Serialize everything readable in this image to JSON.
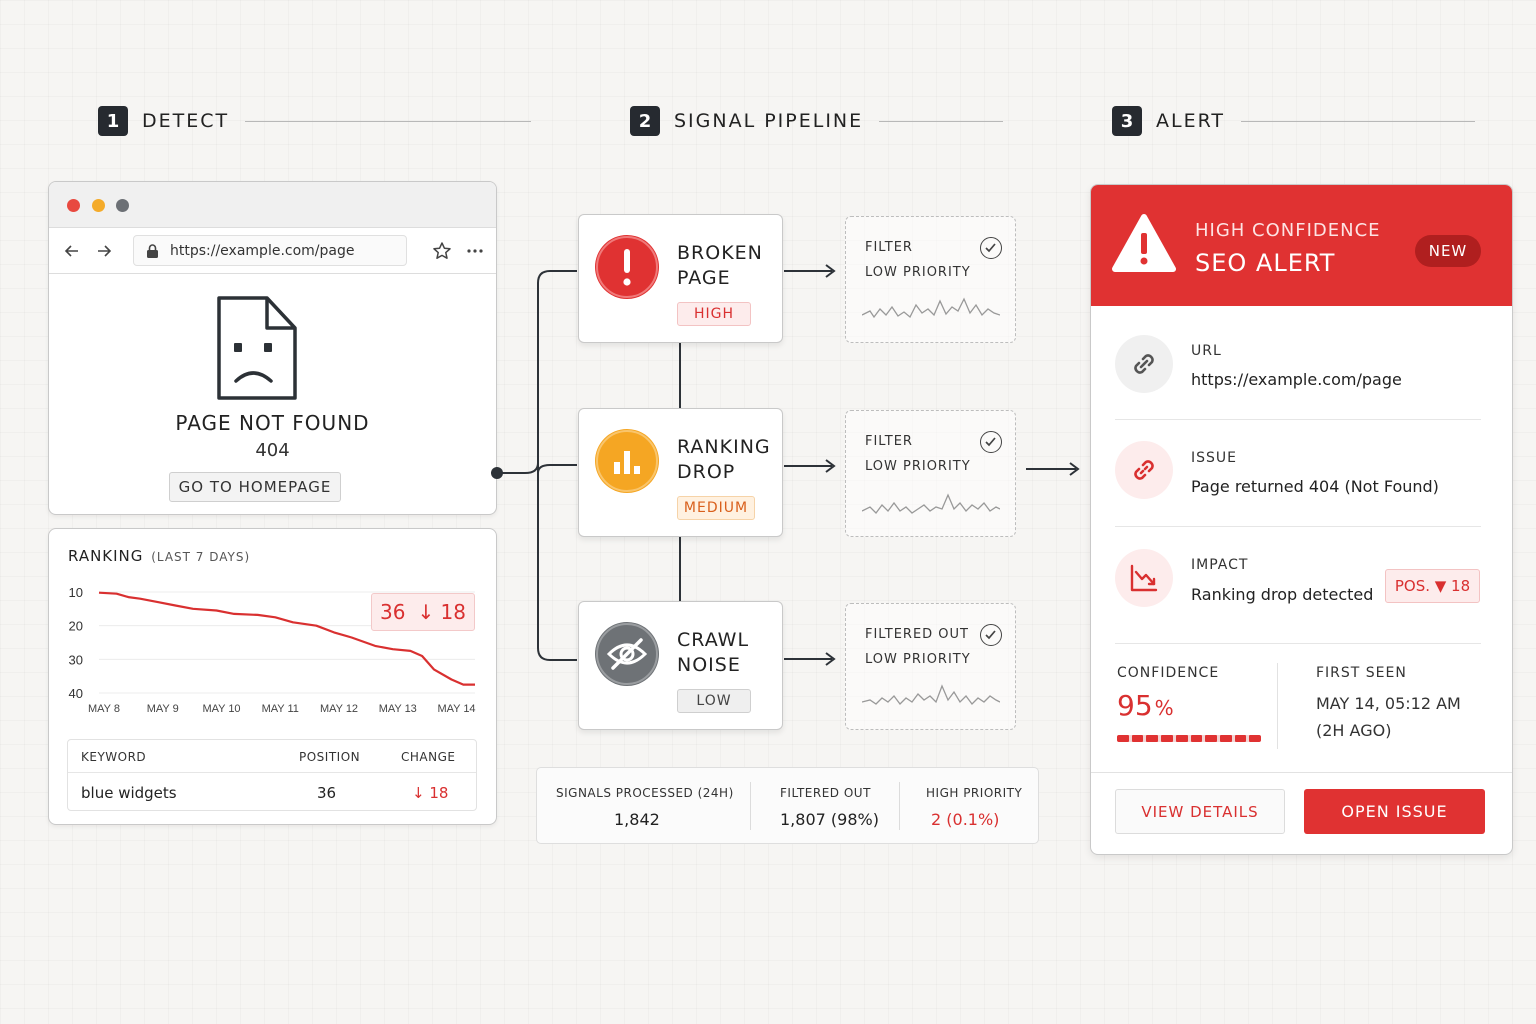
{
  "steps": [
    {
      "num": "1",
      "title": "DETECT"
    },
    {
      "num": "2",
      "title": "SIGNAL PIPELINE"
    },
    {
      "num": "3",
      "title": "ALERT"
    }
  ],
  "browser": {
    "url": "https://example.com/page",
    "error_title": "PAGE NOT FOUND",
    "error_code": "404",
    "home_button": "GO TO HOMEPAGE"
  },
  "ranking": {
    "title": "RANKING",
    "subtitle": "(LAST 7 DAYS)",
    "current_position": "36",
    "change": "↓ 18",
    "table": {
      "headers": [
        "KEYWORD",
        "POSITION",
        "CHANGE"
      ],
      "row": {
        "keyword": "blue widgets",
        "position": "36",
        "change": "↓ 18"
      }
    }
  },
  "chart_data": {
    "type": "line",
    "title": "RANKING (LAST 7 DAYS)",
    "x": [
      "MAY 8",
      "MAY 9",
      "MAY 10",
      "MAY 11",
      "MAY 12",
      "MAY 13",
      "MAY 14"
    ],
    "y_ticks": [
      10,
      20,
      30,
      40
    ],
    "ylim": [
      10,
      40
    ],
    "y_inverted": true,
    "series": [
      {
        "color": "#d93030",
        "points": [
          [
            0,
            10.2
          ],
          [
            0.3,
            10.5
          ],
          [
            0.5,
            11.5
          ],
          [
            0.7,
            12
          ],
          [
            1,
            13
          ],
          [
            1.3,
            14
          ],
          [
            1.6,
            15
          ],
          [
            2,
            15.5
          ],
          [
            2.3,
            16.5
          ],
          [
            2.7,
            16.8
          ],
          [
            3,
            17.5
          ],
          [
            3.3,
            19
          ],
          [
            3.7,
            20
          ],
          [
            4,
            22
          ],
          [
            4.3,
            23.5
          ],
          [
            4.7,
            26
          ],
          [
            5,
            27
          ],
          [
            5.3,
            27.5
          ],
          [
            5.5,
            29
          ],
          [
            5.7,
            33
          ],
          [
            6,
            36
          ],
          [
            6.2,
            37.5
          ],
          [
            6.4,
            37.5
          ]
        ]
      }
    ],
    "grid": true
  },
  "pipeline": {
    "nodes": [
      {
        "title_line1": "BROKEN",
        "title_line2": "PAGE",
        "badge": "HIGH",
        "color": "#e03232"
      },
      {
        "title_line1": "RANKING",
        "title_line2": "DROP",
        "badge": "MEDIUM",
        "color": "#f5a623"
      },
      {
        "title_line1": "CRAWL",
        "title_line2": "NOISE",
        "badge": "LOW",
        "color": "#6e7276"
      }
    ],
    "filters": [
      {
        "title": "FILTER",
        "priority": "LOW PRIORITY"
      },
      {
        "title": "FILTER",
        "priority": "LOW PRIORITY"
      },
      {
        "title": "FILTERED OUT",
        "priority": "LOW PRIORITY"
      }
    ]
  },
  "stats": {
    "processed_label": "SIGNALS PROCESSED (24H)",
    "processed_value": "1,842",
    "filtered_label": "FILTERED OUT",
    "filtered_value": "1,807 (98%)",
    "high_label": "HIGH PRIORITY",
    "high_value": "2 (0.1%)"
  },
  "alert": {
    "head_line1": "HIGH CONFIDENCE",
    "head_line2": "SEO ALERT",
    "new_badge": "NEW",
    "url_label": "URL",
    "url_value": "https://example.com/page",
    "issue_label": "ISSUE",
    "issue_value": "Page returned 404 (Not Found)",
    "impact_label": "IMPACT",
    "impact_value": "Ranking drop detected",
    "impact_badge": "POS. ▼ 18",
    "confidence_label": "CONFIDENCE",
    "confidence_value": "95",
    "confidence_unit": "%",
    "confidence_fraction": 0.95,
    "first_seen_label": "FIRST SEEN",
    "first_seen_value": "MAY 14, 05:12 AM",
    "first_seen_ago": "(2H AGO)",
    "view_button": "VIEW DETAILS",
    "open_button": "OPEN ISSUE"
  },
  "colors": {
    "accent_red": "#e03232",
    "accent_orange": "#f5a623",
    "neutral_gray": "#6e7276",
    "dark": "#262a30"
  }
}
